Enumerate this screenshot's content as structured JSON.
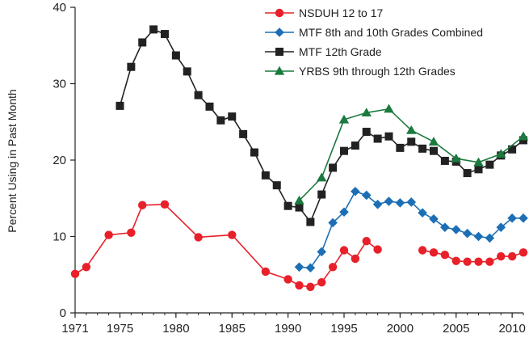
{
  "chart_data": {
    "type": "line",
    "ylabel": "Percent Using in Past Month",
    "xlabel": "",
    "ylim": [
      0,
      40
    ],
    "xlim": [
      1971,
      2011
    ],
    "x_ticks": [
      1971,
      1975,
      1980,
      1985,
      1990,
      1995,
      2000,
      2005,
      2010
    ],
    "y_ticks": [
      0,
      10,
      20,
      30,
      40
    ],
    "legend_position": "top-right",
    "grid": false,
    "series": [
      {
        "name": "NSDUH 12 to 17",
        "color": "#e8202a",
        "marker": "circle",
        "segments": [
          {
            "x": [
              1971,
              1972,
              1974,
              1976,
              1977,
              1979,
              1982,
              1985,
              1988,
              1990,
              1991,
              1992,
              1993,
              1994,
              1995,
              1996,
              1997,
              1998
            ],
            "y": [
              5.1,
              6.0,
              10.2,
              10.5,
              14.1,
              14.2,
              9.9,
              10.2,
              5.4,
              4.4,
              3.6,
              3.4,
              4.0,
              6.0,
              8.2,
              7.1,
              9.4,
              8.3
            ]
          },
          {
            "x": [
              2002,
              2003,
              2004,
              2005,
              2006,
              2007,
              2008,
              2009,
              2010,
              2011
            ],
            "y": [
              8.2,
              7.9,
              7.6,
              6.8,
              6.7,
              6.7,
              6.7,
              7.4,
              7.4,
              7.9
            ]
          }
        ]
      },
      {
        "name": "MTF 8th and 10th Grades Combined",
        "color": "#1c6fb5",
        "marker": "diamond",
        "segments": [
          {
            "x": [
              1991,
              1992,
              1993,
              1994,
              1995,
              1996,
              1997,
              1998,
              1999,
              2000,
              2001,
              2002,
              2003,
              2004,
              2005,
              2006,
              2007,
              2008,
              2009,
              2010,
              2011
            ],
            "y": [
              6.0,
              5.9,
              8.0,
              11.8,
              13.2,
              15.9,
              15.4,
              14.2,
              14.6,
              14.4,
              14.5,
              13.1,
              12.3,
              11.2,
              10.9,
              10.4,
              10.0,
              9.8,
              11.2,
              12.4,
              12.4
            ]
          }
        ]
      },
      {
        "name": "MTF 12th Grade",
        "color": "#222222",
        "marker": "square",
        "segments": [
          {
            "x": [
              1975,
              1976,
              1977,
              1978,
              1979,
              1980,
              1981,
              1982,
              1983,
              1984,
              1985,
              1986,
              1987,
              1988,
              1989,
              1990,
              1991,
              1992,
              1993,
              1994,
              1995,
              1996,
              1997,
              1998,
              1999,
              2000,
              2001,
              2002,
              2003,
              2004,
              2005,
              2006,
              2007,
              2008,
              2009,
              2010,
              2011
            ],
            "y": [
              27.1,
              32.2,
              35.4,
              37.1,
              36.5,
              33.7,
              31.6,
              28.5,
              27.0,
              25.2,
              25.7,
              23.4,
              21.0,
              18.0,
              16.7,
              14.0,
              13.8,
              11.9,
              15.5,
              19.0,
              21.2,
              21.9,
              23.7,
              22.8,
              23.1,
              21.6,
              22.4,
              21.5,
              21.2,
              19.9,
              19.8,
              18.3,
              18.8,
              19.4,
              20.6,
              21.4,
              22.6
            ]
          }
        ]
      },
      {
        "name": "YRBS 9th through 12th Grades",
        "color": "#1b7a3e",
        "marker": "triangle",
        "segments": [
          {
            "x": [
              1991,
              1993,
              1995,
              1997,
              1999,
              2001,
              2003,
              2005,
              2007,
              2009,
              2011
            ],
            "y": [
              14.7,
              17.7,
              25.3,
              26.2,
              26.7,
              23.9,
              22.4,
              20.2,
              19.7,
              20.8,
              23.1
            ]
          }
        ]
      }
    ]
  }
}
